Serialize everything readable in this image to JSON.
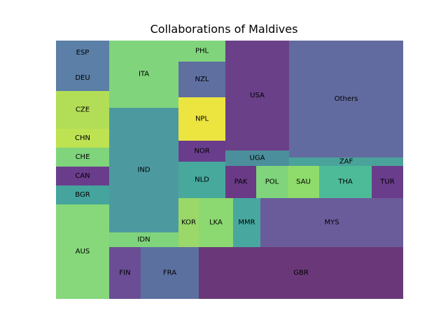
{
  "chart_data": {
    "type": "treemap",
    "title": "Collaborations of Maldives",
    "cells": [
      {
        "label": "ESP",
        "value": 2,
        "color": "#5b7fa6"
      },
      {
        "label": "DEU",
        "value": 2,
        "color": "#5b7fa6"
      },
      {
        "label": "CZE",
        "value": 3,
        "color": "#b2dd56"
      },
      {
        "label": "CHN",
        "value": 1.5,
        "color": "#bde252"
      },
      {
        "label": "CHE",
        "value": 1.5,
        "color": "#7fd47c"
      },
      {
        "label": "CAN",
        "value": 1.5,
        "color": "#6a3d8c"
      },
      {
        "label": "BGR",
        "value": 1.5,
        "color": "#45a49e"
      },
      {
        "label": "AUS",
        "value": 7.5,
        "color": "#86d87a"
      },
      {
        "label": "ITA",
        "value": 5,
        "color": "#7fd47c"
      },
      {
        "label": "IND",
        "value": 9,
        "color": "#4c9aa0"
      },
      {
        "label": "IDN",
        "value": 1,
        "color": "#7fd47c"
      },
      {
        "label": "PHL",
        "value": 1,
        "color": "#7fd47c"
      },
      {
        "label": "NZL",
        "value": 2,
        "color": "#5f6fa0"
      },
      {
        "label": "NPL",
        "value": 2,
        "color": "#ece540"
      },
      {
        "label": "NOR",
        "value": 1,
        "color": "#6a3d8c"
      },
      {
        "label": "NLD",
        "value": 2,
        "color": "#47a89c"
      },
      {
        "label": "USA",
        "value": 8,
        "color": "#6a4088"
      },
      {
        "label": "UGA",
        "value": 1,
        "color": "#4c8f9c"
      },
      {
        "label": "Others",
        "value": 16.5,
        "color": "#626b9f"
      },
      {
        "label": "ZAF",
        "value": 1,
        "color": "#4aa39a"
      },
      {
        "label": "PAK",
        "value": 1,
        "color": "#6a3a86"
      },
      {
        "label": "POL",
        "value": 1,
        "color": "#7fd47c"
      },
      {
        "label": "SAU",
        "value": 1,
        "color": "#8fdb6c"
      },
      {
        "label": "THA",
        "value": 2,
        "color": "#4dbb98"
      },
      {
        "label": "TUR",
        "value": 1,
        "color": "#6a3d8c"
      },
      {
        "label": "KOR",
        "value": 0.5,
        "color": "#9ad86a"
      },
      {
        "label": "LKA",
        "value": 1,
        "color": "#8bd970"
      },
      {
        "label": "MMR",
        "value": 1,
        "color": "#48a8a0"
      },
      {
        "label": "MYS",
        "value": 5,
        "color": "#6a5c9a"
      },
      {
        "label": "FIN",
        "value": 1,
        "color": "#6a4d94"
      },
      {
        "label": "FRA",
        "value": 2,
        "color": "#5c70a0"
      },
      {
        "label": "GBR",
        "value": 8,
        "color": "#6a3878"
      }
    ]
  }
}
